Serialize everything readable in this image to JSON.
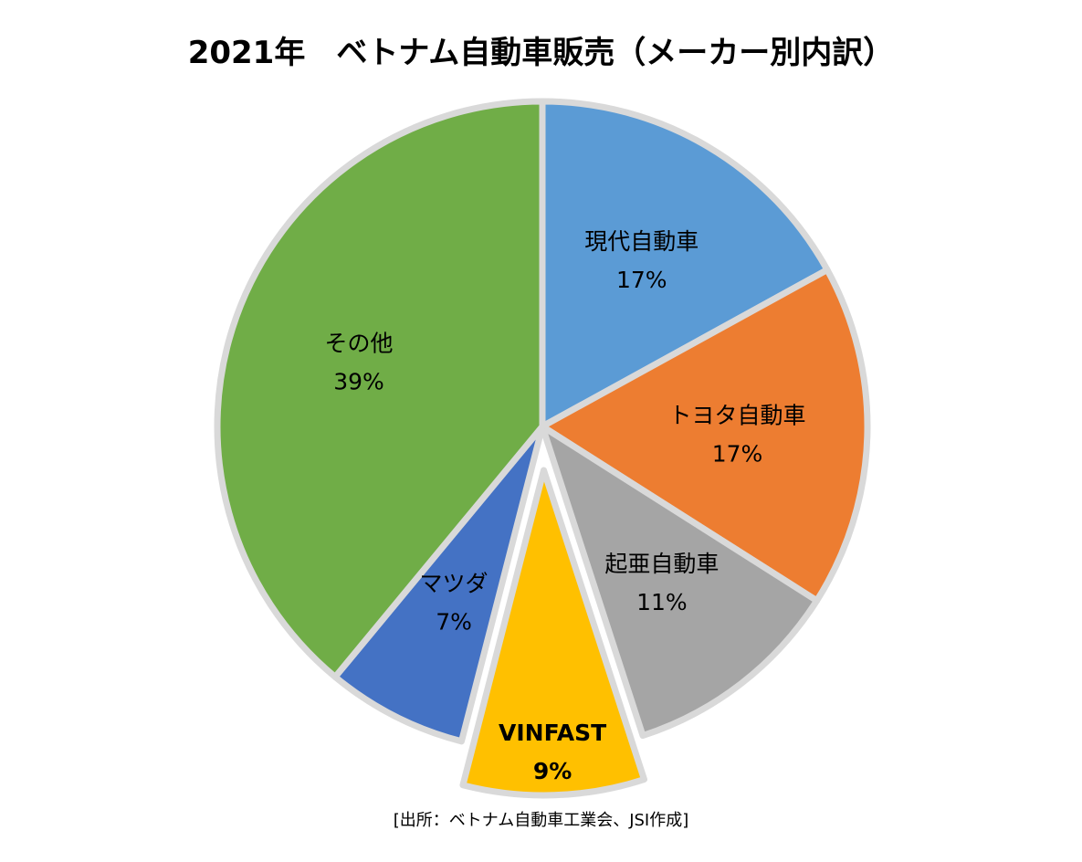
{
  "chart_data": {
    "type": "pie",
    "title": "2021年　ベトナム自動車販売（メーカー別内訳）",
    "source": "[出所：ベトナム自動車工業会、JSI作成]",
    "unit": "%",
    "slices": [
      {
        "label": "現代自動車",
        "value": 17,
        "value_label": "17%",
        "color": "#5B9BD5",
        "exploded": false,
        "bold": false
      },
      {
        "label": "トヨタ自動車",
        "value": 17,
        "value_label": "17%",
        "color": "#ED7D31",
        "exploded": false,
        "bold": false
      },
      {
        "label": "起亜自動車",
        "value": 11,
        "value_label": "11%",
        "color": "#A5A5A5",
        "exploded": false,
        "bold": false
      },
      {
        "label": "VINFAST",
        "value": 9,
        "value_label": "9%",
        "color": "#FFC000",
        "exploded": true,
        "bold": true
      },
      {
        "label": "マツダ",
        "value": 7,
        "value_label": "7%",
        "color": "#4472C4",
        "exploded": false,
        "bold": false
      },
      {
        "label": "その他",
        "value": 39,
        "value_label": "39%",
        "color": "#70AD47",
        "exploded": false,
        "bold": false
      }
    ],
    "start_angle": "12 o'clock",
    "direction": "clockwise",
    "legend": "none"
  }
}
